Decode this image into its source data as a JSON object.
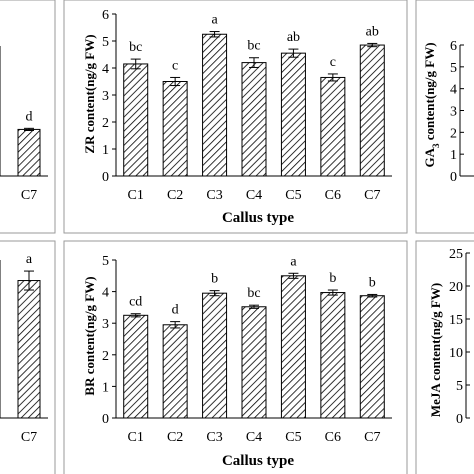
{
  "panels": [
    {
      "id": "tl",
      "chart_data": {
        "type": "bar",
        "categories": [
          "C7"
        ],
        "values": [
          2.15
        ],
        "errors": [
          0.05
        ],
        "letters": [
          "d"
        ],
        "ylabel": "",
        "xlabel": "",
        "partial": true
      }
    },
    {
      "id": "tm",
      "chart_data": {
        "type": "bar",
        "categories": [
          "C1",
          "C2",
          "C3",
          "C4",
          "C5",
          "C6",
          "C7"
        ],
        "values": [
          4.15,
          3.5,
          5.25,
          4.2,
          4.55,
          3.65,
          4.85
        ],
        "errors": [
          0.18,
          0.15,
          0.1,
          0.18,
          0.15,
          0.13,
          0.06
        ],
        "letters": [
          "bc",
          "c",
          "a",
          "bc",
          "ab",
          "c",
          "ab"
        ],
        "ylabel": "ZR content(ng/g FW)",
        "xlabel": "Callus type",
        "yticks": [
          0,
          1,
          2,
          3,
          4,
          5,
          6
        ],
        "ylim": [
          0,
          6
        ]
      }
    },
    {
      "id": "tr",
      "chart_data": {
        "type": "bar",
        "categories": [],
        "values": [],
        "ylabel": "GA3 content(ng/g FW)",
        "xlabel": "",
        "yticks": [
          0,
          1,
          2,
          3,
          4,
          5,
          6
        ],
        "ylim": [
          0,
          6
        ],
        "partial": true
      }
    },
    {
      "id": "bl",
      "chart_data": {
        "type": "bar",
        "categories": [
          "C7"
        ],
        "values": [
          4.35
        ],
        "errors": [
          0.3
        ],
        "letters": [
          "a"
        ],
        "ylabel": "",
        "xlabel": "",
        "partial": true
      }
    },
    {
      "id": "bm",
      "chart_data": {
        "type": "bar",
        "categories": [
          "C1",
          "C2",
          "C3",
          "C4",
          "C5",
          "C6",
          "C7"
        ],
        "values": [
          3.25,
          2.95,
          3.95,
          3.52,
          4.5,
          3.97,
          3.87
        ],
        "errors": [
          0.05,
          0.1,
          0.08,
          0.05,
          0.08,
          0.08,
          0.04
        ],
        "letters": [
          "cd",
          "d",
          "b",
          "bc",
          "a",
          "b",
          "b"
        ],
        "ylabel": "BR content(ng/g FW)",
        "xlabel": "Callus type",
        "yticks": [
          0,
          1,
          2,
          3,
          4,
          5
        ],
        "ylim": [
          0,
          5
        ]
      }
    },
    {
      "id": "br",
      "chart_data": {
        "type": "bar",
        "categories": [],
        "values": [],
        "ylabel": "MeJA content(ng/g FW)",
        "xlabel": "",
        "yticks": [
          0,
          5,
          10,
          15,
          20,
          25
        ],
        "ylim": [
          0,
          25
        ],
        "partial": true
      }
    }
  ]
}
